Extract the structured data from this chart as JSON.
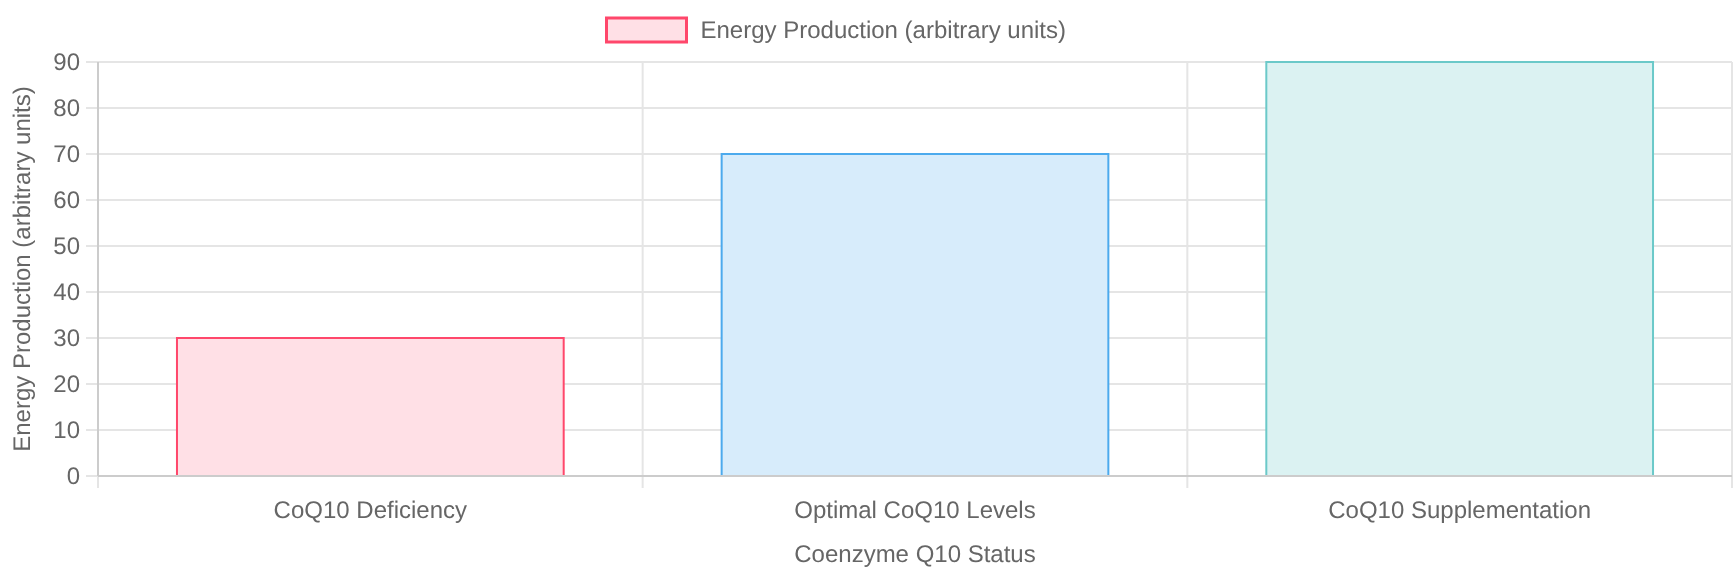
{
  "chart_data": {
    "type": "bar",
    "xlabel": "Coenzyme Q10 Status",
    "ylabel": "Energy Production (arbitrary units)",
    "categories": [
      "CoQ10 Deficiency",
      "Optimal CoQ10 Levels",
      "CoQ10 Supplementation"
    ],
    "series": [
      {
        "name": "Energy Production (arbitrary units)",
        "color": "#ffe0e6",
        "colors": [
          "#ffe0e6",
          "#d7ecfb",
          "#dbf2f2"
        ],
        "values": [
          30,
          70,
          90
        ]
      }
    ],
    "ylim": [
      0,
      90
    ],
    "yticks": [
      0,
      10,
      20,
      30,
      40,
      50,
      60,
      70,
      80,
      90
    ],
    "grid": true,
    "legend": "top"
  }
}
